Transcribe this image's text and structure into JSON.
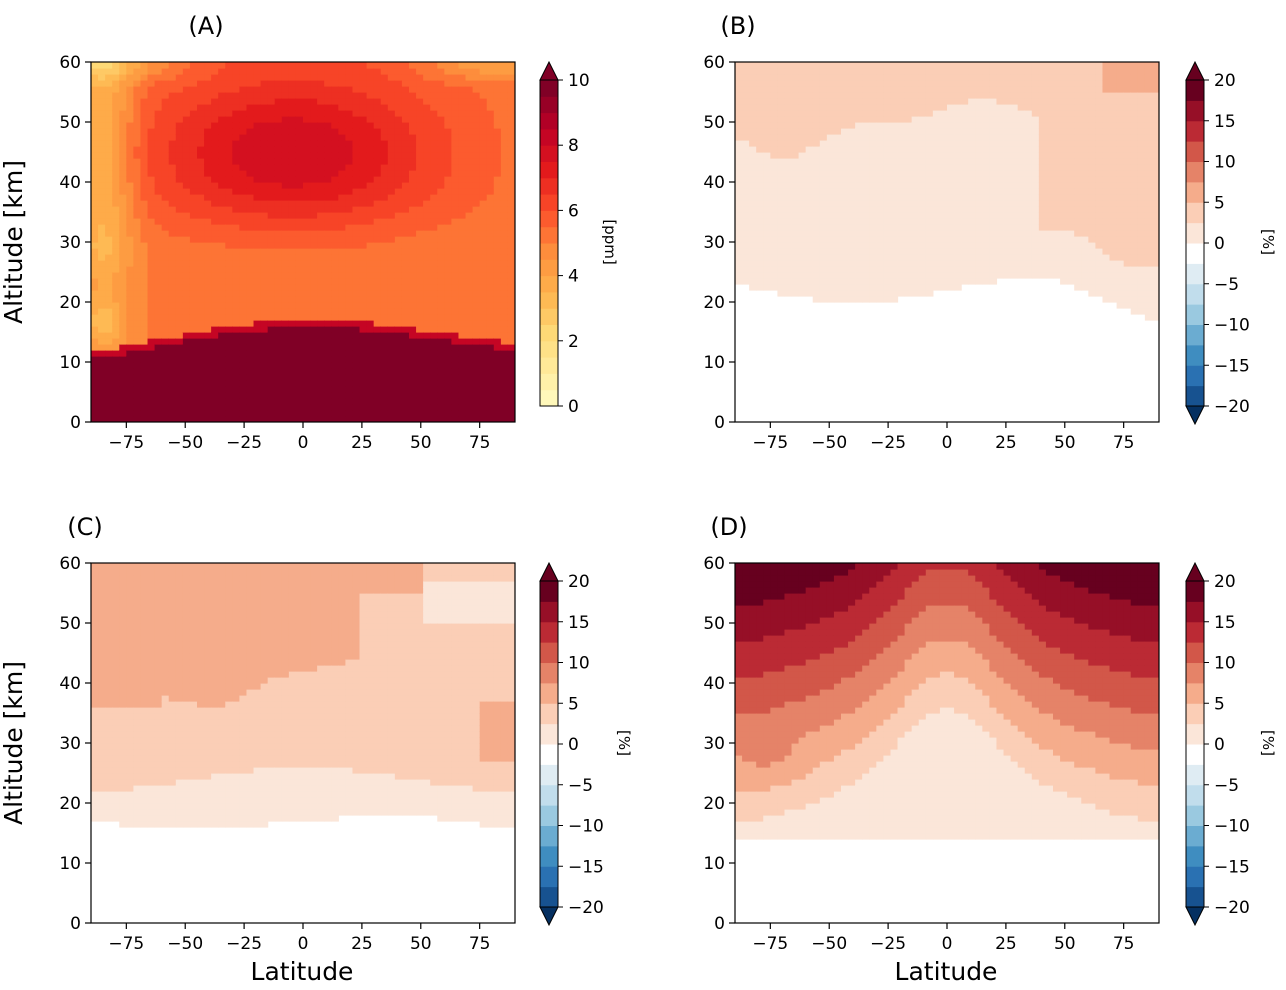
{
  "chart_data": [
    {
      "type": "heatmap",
      "panel_label": "(A)",
      "field": "concentration",
      "xlabel": "",
      "ylabel": "Altitude [km]",
      "xlim": [
        -90,
        90
      ],
      "ylim": [
        0,
        60
      ],
      "x_ticks": [
        "−75",
        "−50",
        "−25",
        "0",
        "25",
        "50",
        "75"
      ],
      "y_ticks": [
        "0",
        "10",
        "20",
        "30",
        "40",
        "50",
        "60"
      ],
      "colorbar": {
        "label": "[ppm]",
        "colormap": "YlOrRd",
        "range": [
          0,
          10
        ],
        "ticks": [
          "0",
          "2",
          "4",
          "6",
          "8",
          "10"
        ],
        "extend": "max"
      },
      "features": {
        "tropopause_km_at_lat": {
          "lat": [
            -90,
            -75,
            -50,
            -25,
            0,
            25,
            50,
            75,
            90
          ],
          "km": [
            10.5,
            11.5,
            13.5,
            15.2,
            16.0,
            15.5,
            14.2,
            12.8,
            12.0
          ]
        },
        "below_tropopause_ppm": 10,
        "upper_maximum_ppm": 7.5,
        "south_polar_low_ppm": 3.5
      }
    },
    {
      "type": "heatmap",
      "panel_label": "(B)",
      "field": "percent_difference",
      "xlabel": "",
      "ylabel": "",
      "xlim": [
        -90,
        90
      ],
      "ylim": [
        0,
        60
      ],
      "x_ticks": [
        "−75",
        "−50",
        "−25",
        "0",
        "25",
        "50",
        "75"
      ],
      "y_ticks": [
        "0",
        "10",
        "20",
        "30",
        "40",
        "50",
        "60"
      ],
      "colorbar": {
        "label": "[%]",
        "colormap": "RdBu_r",
        "range": [
          -20,
          20
        ],
        "ticks": [
          "−20",
          "−15",
          "−10",
          "−5",
          "0",
          "5",
          "10",
          "15",
          "20"
        ],
        "extend": "both"
      },
      "features": {
        "lower_boundary_km": 20,
        "upper_value_pct": 3,
        "top_value_pct": 6
      }
    },
    {
      "type": "heatmap",
      "panel_label": "(C)",
      "field": "percent_difference",
      "xlabel": "Latitude",
      "ylabel": "Altitude [km]",
      "xlim": [
        -90,
        90
      ],
      "ylim": [
        0,
        60
      ],
      "x_ticks": [
        "−75",
        "−50",
        "−25",
        "0",
        "25",
        "50",
        "75"
      ],
      "y_ticks": [
        "0",
        "10",
        "20",
        "30",
        "40",
        "50",
        "60"
      ],
      "colorbar": {
        "label": "[%]",
        "colormap": "RdBu_r",
        "range": [
          -20,
          20
        ],
        "ticks": [
          "−20",
          "−15",
          "−10",
          "−5",
          "0",
          "5",
          "10",
          "15",
          "20"
        ],
        "extend": "both"
      },
      "features": {
        "lower_boundary_km": 17,
        "mid_value_pct": 5,
        "upper_value_pct": 8
      }
    },
    {
      "type": "heatmap",
      "panel_label": "(D)",
      "field": "percent_difference",
      "xlabel": "Latitude",
      "ylabel": "",
      "xlim": [
        -90,
        90
      ],
      "ylim": [
        0,
        60
      ],
      "x_ticks": [
        "−75",
        "−50",
        "−25",
        "0",
        "25",
        "50",
        "75"
      ],
      "y_ticks": [
        "0",
        "10",
        "20",
        "30",
        "40",
        "50",
        "60"
      ],
      "colorbar": {
        "label": "[%]",
        "colormap": "RdBu_r",
        "range": [
          -20,
          20
        ],
        "ticks": [
          "−20",
          "−15",
          "−10",
          "−5",
          "0",
          "5",
          "10",
          "15",
          "20"
        ],
        "extend": "both"
      },
      "features": {
        "lower_boundary_km": 15,
        "max_value_pct": 20,
        "equatorial_min_pct": 3
      }
    }
  ],
  "colors": {
    "frame": "#000000",
    "YlOrRd": [
      "#ffffcc",
      "#ffeda0",
      "#fed976",
      "#feb24c",
      "#fd8d3c",
      "#fc4e2a",
      "#e31a1c",
      "#bd0026",
      "#800026"
    ],
    "RdBu_r": [
      "#053061",
      "#2166ac",
      "#4393c3",
      "#92c5de",
      "#d1e5f0",
      "#f7f7f7",
      "#fddbc7",
      "#f4a582",
      "#d6604d",
      "#b2182b",
      "#67001f"
    ]
  }
}
